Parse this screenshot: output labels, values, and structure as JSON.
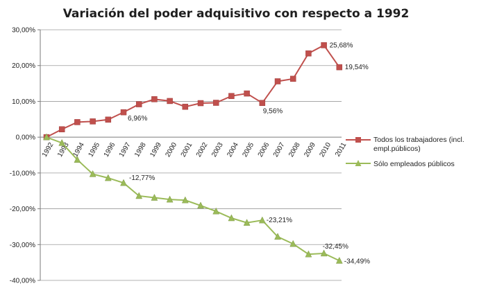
{
  "chart_data": {
    "type": "line",
    "title": "Variación del poder adquisitivo con respecto a 1992",
    "categories": [
      "1992",
      "1993",
      "1994",
      "1995",
      "1996",
      "1997",
      "1998",
      "1999",
      "2000",
      "2001",
      "2002",
      "2003",
      "2004",
      "2005",
      "2006",
      "2007",
      "2008",
      "2009",
      "2010",
      "2011"
    ],
    "yticks": [
      "30,00%",
      "20,00%",
      "10,00%",
      "0,00%",
      "-10,00%",
      "-20,00%",
      "-30,00%",
      "-40,00%"
    ],
    "ylim": [
      -40,
      30
    ],
    "series": [
      {
        "name": "Todos los trabajadores  (incl. empl.públicos)",
        "color": "#c0504d",
        "marker": "square",
        "values": [
          0,
          2.2,
          4.2,
          4.4,
          4.9,
          6.96,
          9.2,
          10.6,
          10.1,
          8.5,
          9.5,
          9.6,
          11.5,
          12.2,
          9.56,
          15.6,
          16.3,
          23.4,
          25.68,
          19.54
        ]
      },
      {
        "name": "Sólo empleados  públicos",
        "color": "#9bbb59",
        "marker": "triangle",
        "values": [
          0,
          -1.6,
          -6.3,
          -10.3,
          -11.4,
          -12.77,
          -16.4,
          -16.9,
          -17.4,
          -17.6,
          -19.1,
          -20.7,
          -22.6,
          -23.9,
          -23.21,
          -27.8,
          -29.8,
          -32.7,
          -32.45,
          -34.49
        ]
      }
    ],
    "annotations": [
      {
        "series": 0,
        "index": 5,
        "text": "6,96%"
      },
      {
        "series": 0,
        "index": 14,
        "text": "9,56%"
      },
      {
        "series": 0,
        "index": 18,
        "text": "25,68%"
      },
      {
        "series": 0,
        "index": 19,
        "text": "19,54%"
      },
      {
        "series": 1,
        "index": 5,
        "text": "-12,77%"
      },
      {
        "series": 1,
        "index": 14,
        "text": "-23,21%"
      },
      {
        "series": 1,
        "index": 18,
        "text": "-32,45%"
      },
      {
        "series": 1,
        "index": 19,
        "text": "-34,49%"
      }
    ],
    "legend": [
      {
        "line1": "Todos los trabajadores  (incl.",
        "line2": "empl.públicos)"
      },
      {
        "line1": "Sólo empleados  públicos",
        "line2": ""
      }
    ],
    "legend_position": "right",
    "grid": true
  }
}
